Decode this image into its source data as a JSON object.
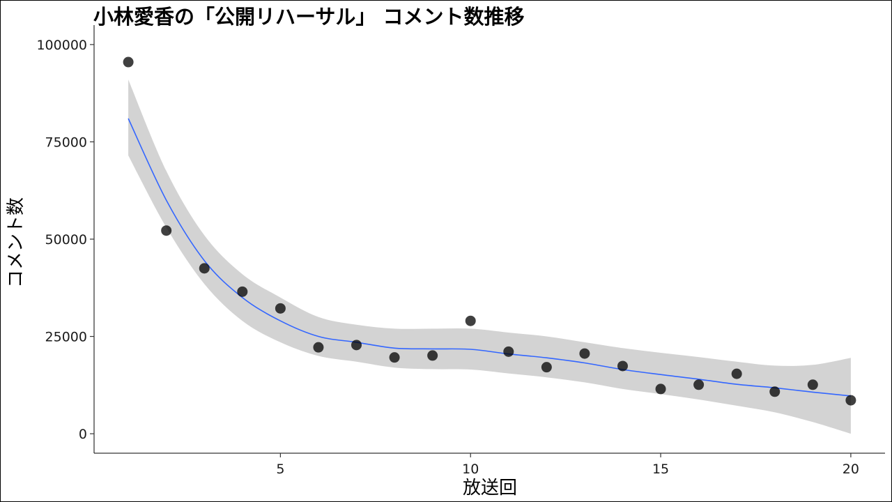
{
  "chart_data": {
    "type": "scatter",
    "title": "小林愛香の「公開リハーサル」 コメント数推移",
    "xlabel": "放送回",
    "ylabel": "コメント数",
    "xlim": [
      0.1,
      20.9
    ],
    "ylim": [
      -5000,
      105000
    ],
    "x_ticks": [
      5,
      10,
      15,
      20
    ],
    "y_ticks": [
      0,
      25000,
      50000,
      75000,
      100000
    ],
    "grid": false,
    "points": {
      "x": [
        1,
        2,
        3,
        4,
        5,
        6,
        7,
        8,
        9,
        10,
        11,
        12,
        13,
        14,
        15,
        16,
        17,
        18,
        19,
        20
      ],
      "y": [
        95500,
        52200,
        42500,
        36500,
        32200,
        22200,
        22800,
        19600,
        20100,
        29000,
        21100,
        17100,
        20600,
        17400,
        11500,
        12600,
        15400,
        10800,
        12600,
        8600
      ]
    },
    "smooth": {
      "color": "#3366ff",
      "ribbon_color": "#d3d3d3",
      "x": [
        1,
        2,
        3,
        4,
        5,
        6,
        7,
        8,
        9,
        10,
        11,
        12,
        13,
        14,
        15,
        16,
        17,
        18,
        19,
        20
      ],
      "fit": [
        81000,
        60000,
        44500,
        35000,
        29000,
        25000,
        23500,
        22000,
        21800,
        21700,
        20500,
        19500,
        18200,
        16500,
        15200,
        14000,
        12700,
        11800,
        10700,
        9700
      ],
      "lower": [
        71500,
        53000,
        38500,
        29000,
        23500,
        20000,
        18500,
        17000,
        16600,
        16500,
        15500,
        14500,
        13200,
        11500,
        10200,
        8800,
        7200,
        5500,
        3000,
        0
      ],
      "upper": [
        91000,
        67500,
        51000,
        41000,
        35000,
        30000,
        28000,
        27000,
        27000,
        27000,
        26000,
        25000,
        23500,
        22000,
        20800,
        19700,
        18500,
        17500,
        17700,
        19500
      ]
    }
  }
}
